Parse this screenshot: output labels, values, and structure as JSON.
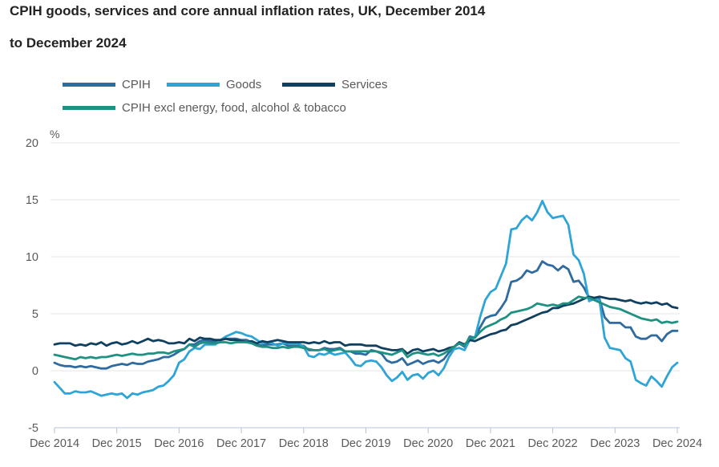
{
  "title": {
    "line1": "CPIH goods, services and core annual inflation rates, UK, December 2014",
    "line2": "to December 2024"
  },
  "colors": {
    "title_text": "#222222",
    "axis_text": "#595959",
    "gridline": "#E6E6E6",
    "axis": "#B5C3D6",
    "background": "#FFFFFF"
  },
  "chart_data": {
    "type": "line",
    "title": "CPIH goods, services and core annual inflation rates, UK, December 2014 to December 2024",
    "unit_label": "%",
    "x_start": "Dec 2014",
    "x_end": "Dec 2024",
    "x_frequency": "monthly",
    "x_tick_labels": [
      "Dec 2014",
      "Dec 2015",
      "Dec 2016",
      "Dec 2017",
      "Dec 2018",
      "Dec 2019",
      "Dec 2020",
      "Dec 2021",
      "Dec 2022",
      "Dec 2023",
      "Dec 2024"
    ],
    "x_ticks_every_n_points": 12,
    "ylim": [
      -5,
      20
    ],
    "y_gridline_values": [
      20,
      15,
      10,
      5,
      0
    ],
    "y_tick_values": [
      20,
      15,
      10,
      5,
      0,
      -5
    ],
    "y_tick_labels": [
      "20",
      "15",
      "10",
      "5",
      "0",
      "-5"
    ],
    "grid": true,
    "legend_position": "top-left",
    "series": [
      {
        "name": "CPIH",
        "color": "#2F6B9F",
        "values": [
          0.7,
          0.5,
          0.4,
          0.4,
          0.3,
          0.4,
          0.3,
          0.4,
          0.3,
          0.2,
          0.2,
          0.4,
          0.5,
          0.6,
          0.5,
          0.7,
          0.6,
          0.6,
          0.8,
          0.9,
          1.0,
          1.2,
          1.2,
          1.4,
          1.7,
          1.9,
          2.3,
          2.3,
          2.6,
          2.7,
          2.6,
          2.6,
          2.7,
          2.8,
          2.8,
          2.8,
          2.7,
          2.7,
          2.5,
          2.3,
          2.2,
          2.3,
          2.3,
          2.3,
          2.4,
          2.2,
          2.2,
          2.2,
          2.2,
          1.8,
          1.8,
          1.8,
          2.0,
          1.9,
          1.9,
          2.0,
          1.7,
          1.7,
          1.5,
          1.5,
          1.4,
          1.8,
          1.7,
          1.5,
          0.9,
          0.7,
          0.8,
          1.1,
          0.5,
          0.7,
          0.9,
          0.6,
          0.8,
          0.9,
          0.7,
          1.0,
          1.6,
          2.1,
          2.4,
          2.1,
          3.0,
          2.9,
          3.8,
          4.6,
          4.8,
          4.9,
          5.5,
          6.2,
          7.8,
          7.9,
          8.2,
          8.8,
          8.6,
          8.8,
          9.6,
          9.3,
          9.2,
          8.8,
          9.2,
          8.9,
          7.8,
          7.9,
          7.3,
          6.4,
          6.3,
          6.3,
          4.7,
          4.2,
          4.2,
          4.2,
          3.8,
          3.8,
          3.0,
          2.8,
          2.8,
          3.1,
          3.1,
          2.6,
          3.2,
          3.5,
          3.5
        ]
      },
      {
        "name": "Goods",
        "color": "#2EA5D6",
        "values": [
          -1.0,
          -1.5,
          -2.0,
          -2.0,
          -1.8,
          -1.9,
          -1.9,
          -1.8,
          -2.0,
          -2.2,
          -2.1,
          -2.0,
          -2.1,
          -2.0,
          -2.4,
          -2.0,
          -2.1,
          -1.9,
          -1.8,
          -1.7,
          -1.4,
          -1.3,
          -0.9,
          -0.4,
          0.7,
          1.0,
          1.7,
          2.0,
          1.9,
          2.3,
          2.3,
          2.3,
          2.7,
          3.0,
          3.2,
          3.4,
          3.3,
          3.1,
          3.0,
          2.7,
          2.4,
          2.5,
          2.4,
          2.2,
          2.4,
          2.4,
          2.4,
          2.4,
          2.1,
          1.3,
          1.2,
          1.5,
          1.4,
          1.6,
          1.4,
          1.5,
          1.6,
          1.1,
          0.5,
          0.4,
          0.8,
          0.9,
          0.8,
          0.3,
          -0.4,
          -0.9,
          -0.6,
          -0.1,
          -0.8,
          -0.4,
          -0.3,
          -0.7,
          -0.2,
          0.0,
          -0.4,
          0.2,
          1.2,
          1.9,
          2.0,
          1.8,
          2.7,
          2.9,
          4.7,
          6.2,
          6.9,
          7.2,
          8.3,
          9.4,
          12.4,
          12.5,
          13.2,
          13.6,
          13.2,
          13.9,
          14.9,
          13.9,
          13.4,
          13.5,
          13.6,
          12.8,
          10.2,
          9.7,
          8.5,
          6.1,
          6.3,
          6.2,
          2.9,
          2.0,
          1.9,
          1.8,
          1.1,
          0.8,
          -0.8,
          -1.1,
          -1.3,
          -0.5,
          -0.9,
          -1.4,
          -0.5,
          0.3,
          0.7
        ]
      },
      {
        "name": "Services",
        "color": "#10405F",
        "values": [
          2.3,
          2.4,
          2.4,
          2.4,
          2.2,
          2.3,
          2.2,
          2.4,
          2.3,
          2.5,
          2.2,
          2.4,
          2.5,
          2.3,
          2.4,
          2.6,
          2.4,
          2.6,
          2.8,
          2.6,
          2.7,
          2.6,
          2.4,
          2.4,
          2.5,
          2.4,
          2.8,
          2.6,
          2.9,
          2.8,
          2.8,
          2.7,
          2.7,
          2.8,
          2.7,
          2.7,
          2.6,
          2.5,
          2.6,
          2.4,
          2.6,
          2.5,
          2.6,
          2.7,
          2.6,
          2.5,
          2.5,
          2.5,
          2.5,
          2.4,
          2.5,
          2.4,
          2.6,
          2.4,
          2.5,
          2.5,
          2.2,
          2.3,
          2.3,
          2.3,
          2.2,
          2.2,
          2.2,
          2.0,
          1.9,
          1.8,
          1.8,
          1.9,
          1.5,
          1.8,
          1.9,
          1.7,
          1.8,
          1.9,
          1.7,
          1.8,
          2.0,
          2.1,
          2.5,
          2.3,
          2.7,
          2.6,
          2.8,
          3.0,
          3.2,
          3.3,
          3.5,
          3.6,
          4.0,
          4.1,
          4.3,
          4.5,
          4.7,
          4.9,
          5.1,
          5.2,
          5.5,
          5.5,
          5.7,
          5.8,
          5.9,
          6.1,
          6.3,
          6.5,
          6.4,
          6.5,
          6.4,
          6.3,
          6.3,
          6.2,
          6.1,
          6.2,
          6.0,
          5.9,
          6.0,
          5.9,
          6.0,
          5.8,
          5.9,
          5.6,
          5.5
        ]
      },
      {
        "name": "CPIH excl energy, food, alcohol & tobacco",
        "color": "#1F9182",
        "values": [
          1.4,
          1.3,
          1.2,
          1.1,
          1.0,
          1.2,
          1.1,
          1.2,
          1.1,
          1.2,
          1.2,
          1.3,
          1.4,
          1.3,
          1.4,
          1.5,
          1.4,
          1.4,
          1.5,
          1.5,
          1.6,
          1.6,
          1.5,
          1.7,
          1.8,
          1.9,
          2.3,
          2.1,
          2.4,
          2.5,
          2.4,
          2.4,
          2.5,
          2.5,
          2.4,
          2.5,
          2.5,
          2.5,
          2.4,
          2.2,
          2.1,
          2.1,
          2.0,
          2.0,
          2.1,
          2.0,
          2.1,
          2.1,
          2.0,
          1.9,
          1.8,
          1.8,
          1.9,
          1.7,
          1.8,
          1.9,
          1.7,
          1.7,
          1.7,
          1.7,
          1.7,
          1.7,
          1.7,
          1.6,
          1.5,
          1.4,
          1.6,
          1.8,
          1.2,
          1.5,
          1.6,
          1.5,
          1.4,
          1.5,
          1.3,
          1.5,
          1.8,
          2.1,
          2.4,
          2.2,
          2.9,
          2.9,
          3.4,
          3.8,
          4.0,
          4.2,
          4.5,
          4.7,
          5.1,
          5.2,
          5.3,
          5.4,
          5.6,
          5.9,
          5.8,
          5.7,
          5.8,
          5.7,
          5.9,
          5.9,
          6.2,
          6.5,
          6.4,
          6.4,
          6.2,
          6.0,
          5.8,
          5.6,
          5.5,
          5.4,
          5.2,
          5.0,
          4.8,
          4.6,
          4.5,
          4.4,
          4.5,
          4.2,
          4.3,
          4.2,
          4.3
        ]
      }
    ]
  }
}
